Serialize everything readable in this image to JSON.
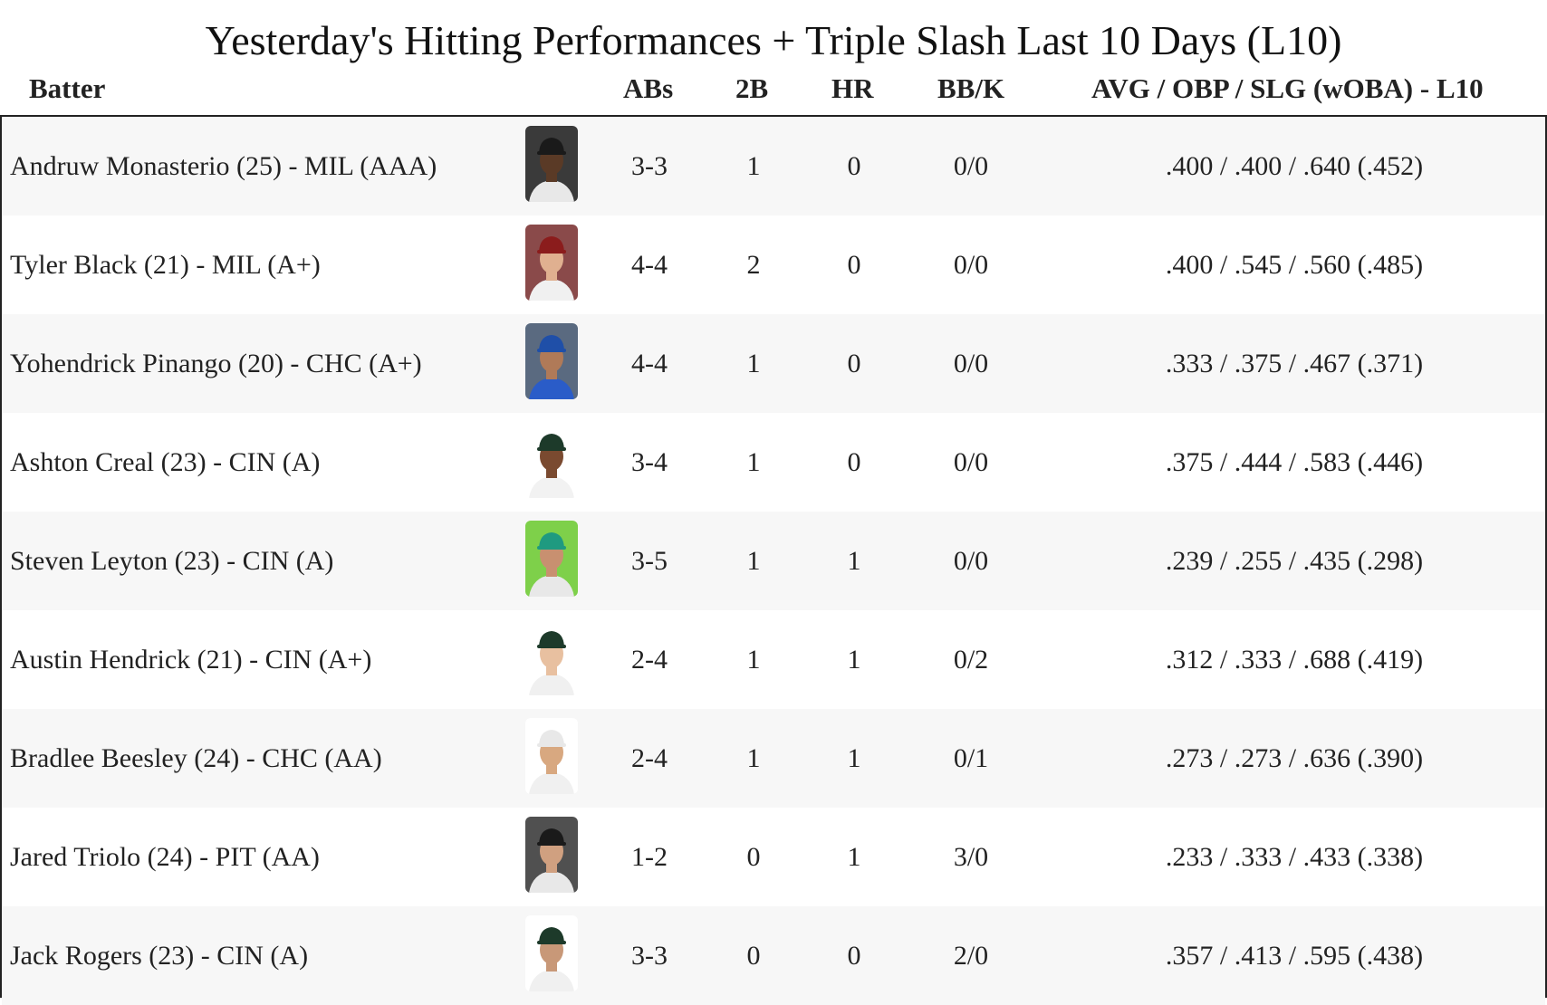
{
  "title": "Yesterday's Hitting Performances + Triple Slash Last 10 Days (L10)",
  "headers": {
    "batter": "Batter",
    "abs": "ABs",
    "doubles": "2B",
    "hr": "HR",
    "bbk": "BB/K",
    "slash": "AVG / OBP / SLG (wOBA) - L10"
  },
  "rows": [
    {
      "name": "Andruw Monasterio (25) - MIL (AAA)",
      "abs": "3-3",
      "doubles": "1",
      "hr": "0",
      "bbk": "0/0",
      "slash": ".400 / .400 / .640 (.452)",
      "photo_bg": "#3a3a3a",
      "cap": "#1a1a1a",
      "skin": "#5a3a26",
      "jersey": "#e8e8e8"
    },
    {
      "name": "Tyler Black (21) - MIL (A+)",
      "abs": "4-4",
      "doubles": "2",
      "hr": "0",
      "bbk": "0/0",
      "slash": ".400 / .545 / .560 (.485)",
      "photo_bg": "#8a4a4a",
      "cap": "#8b1c1c",
      "skin": "#e0b090",
      "jersey": "#f0f0f0"
    },
    {
      "name": "Yohendrick Pinango (20) - CHC (A+)",
      "abs": "4-4",
      "doubles": "1",
      "hr": "0",
      "bbk": "0/0",
      "slash": ".333 / .375 / .467 (.371)",
      "photo_bg": "#5a6a80",
      "cap": "#1f4fa8",
      "skin": "#b07a58",
      "jersey": "#2a5cc8"
    },
    {
      "name": "Ashton Creal (23) - CIN (A)",
      "abs": "3-4",
      "doubles": "1",
      "hr": "0",
      "bbk": "0/0",
      "slash": ".375 / .444 / .583 (.446)",
      "photo_bg": "#ffffff",
      "cap": "#1d3a2a",
      "skin": "#7a4a30",
      "jersey": "#f2f2f2"
    },
    {
      "name": "Steven Leyton (23) - CIN (A)",
      "abs": "3-5",
      "doubles": "1",
      "hr": "1",
      "bbk": "0/0",
      "slash": ".239 / .255 / .435 (.298)",
      "photo_bg": "#7ed04a",
      "cap": "#1f9a80",
      "skin": "#c89070",
      "jersey": "#e8e8e8"
    },
    {
      "name": "Austin Hendrick (21) - CIN (A+)",
      "abs": "2-4",
      "doubles": "1",
      "hr": "1",
      "bbk": "0/2",
      "slash": ".312 / .333 / .688 (.419)",
      "photo_bg": "#ffffff",
      "cap": "#1d3a2a",
      "skin": "#e8c0a0",
      "jersey": "#f0f0f0"
    },
    {
      "name": "Bradlee Beesley (24) - CHC (AA)",
      "abs": "2-4",
      "doubles": "1",
      "hr": "1",
      "bbk": "0/1",
      "slash": ".273 / .273 / .636 (.390)",
      "photo_bg": "#ffffff",
      "cap": "#e8e8e8",
      "skin": "#d8a880",
      "jersey": "#f0f0f0"
    },
    {
      "name": "Jared Triolo (24) - PIT (AA)",
      "abs": "1-2",
      "doubles": "0",
      "hr": "1",
      "bbk": "3/0",
      "slash": ".233 / .333 / .433 (.338)",
      "photo_bg": "#505050",
      "cap": "#1a1a1a",
      "skin": "#d0a080",
      "jersey": "#e8e8e8"
    },
    {
      "name": "Jack Rogers (23) - CIN (A)",
      "abs": "3-3",
      "doubles": "0",
      "hr": "0",
      "bbk": "2/0",
      "slash": ".357 / .413 / .595 (.438)",
      "photo_bg": "#ffffff",
      "cap": "#1d3a2a",
      "skin": "#c89878",
      "jersey": "#f0f0f0"
    }
  ]
}
